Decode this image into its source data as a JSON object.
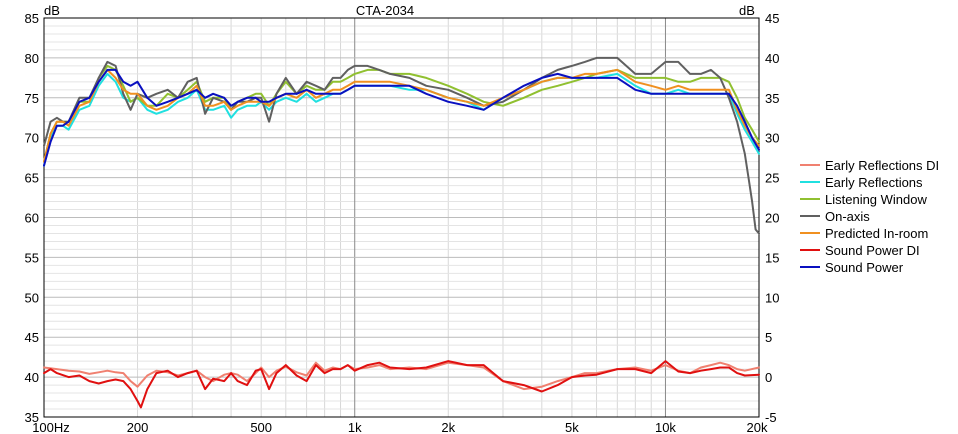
{
  "chart_data": {
    "type": "line",
    "title": "CTA-2034",
    "x_scale": "log",
    "xlim": [
      100,
      20000
    ],
    "x_ticks": [
      {
        "value": 100,
        "label": "100Hz"
      },
      {
        "value": 200,
        "label": "200"
      },
      {
        "value": 500,
        "label": "500"
      },
      {
        "value": 1000,
        "label": "1k"
      },
      {
        "value": 2000,
        "label": "2k"
      },
      {
        "value": 5000,
        "label": "5k"
      },
      {
        "value": 10000,
        "label": "10k"
      },
      {
        "value": 20000,
        "label": "20k"
      }
    ],
    "y_left": {
      "label": "dB",
      "lim": [
        35,
        85
      ],
      "ticks": [
        35,
        40,
        45,
        50,
        55,
        60,
        65,
        70,
        75,
        80,
        85
      ]
    },
    "y_right": {
      "label": "dB",
      "lim": [
        -5,
        45
      ],
      "ticks": [
        -5,
        0,
        5,
        10,
        15,
        20,
        25,
        30,
        35,
        40,
        45
      ]
    },
    "grid": true,
    "legend_position": "right",
    "series": [
      {
        "name": "Early Reflections DI",
        "color": "#f08070",
        "axis": "right",
        "x": [
          100,
          110,
          120,
          130,
          140,
          150,
          160,
          170,
          180,
          190,
          200,
          215,
          230,
          250,
          270,
          290,
          310,
          330,
          350,
          380,
          400,
          420,
          450,
          480,
          500,
          530,
          560,
          600,
          650,
          700,
          750,
          800,
          850,
          900,
          950,
          1000,
          1100,
          1200,
          1300,
          1500,
          1700,
          2000,
          2300,
          2600,
          3000,
          3500,
          4000,
          4500,
          5000,
          5500,
          6000,
          7000,
          8000,
          9000,
          10000,
          11000,
          12000,
          13000,
          14000,
          15000,
          16000,
          17000,
          18000,
          20000
        ],
        "y": [
          1.2,
          1.0,
          0.8,
          0.7,
          0.4,
          0.6,
          0.8,
          0.6,
          0.5,
          -0.5,
          -1.2,
          0.2,
          0.8,
          0.6,
          0.2,
          0.5,
          0.8,
          0.0,
          -0.5,
          0.3,
          0.5,
          0.3,
          -0.5,
          0.5,
          1.2,
          0.0,
          0.8,
          1.3,
          0.6,
          0.2,
          1.8,
          0.8,
          1.2,
          1.0,
          1.5,
          1.0,
          1.2,
          1.5,
          1.0,
          1.2,
          1.0,
          1.8,
          1.5,
          1.2,
          -0.5,
          -1.5,
          -1.2,
          -0.5,
          0.0,
          0.5,
          0.5,
          1.0,
          1.2,
          0.8,
          1.5,
          0.8,
          0.5,
          1.2,
          1.5,
          1.8,
          1.5,
          1.0,
          0.8,
          1.2
        ]
      },
      {
        "name": "Early Reflections",
        "color": "#20e0e0",
        "axis": "left",
        "x": [
          100,
          105,
          110,
          115,
          120,
          130,
          140,
          150,
          160,
          170,
          180,
          190,
          200,
          215,
          230,
          250,
          270,
          290,
          310,
          330,
          350,
          380,
          400,
          420,
          450,
          480,
          500,
          530,
          560,
          600,
          650,
          700,
          750,
          800,
          850,
          900,
          950,
          1000,
          1100,
          1200,
          1300,
          1500,
          1700,
          2000,
          2300,
          2600,
          3000,
          3500,
          4000,
          4500,
          5000,
          5500,
          6000,
          7000,
          8000,
          9000,
          10000,
          11000,
          12000,
          13000,
          14000,
          15000,
          16000,
          17000,
          18000,
          19000,
          20000
        ],
        "y": [
          66.5,
          70.0,
          71.5,
          71.5,
          71.0,
          73.5,
          74.0,
          76.5,
          78.0,
          77.0,
          75.0,
          74.5,
          75.0,
          73.5,
          73.0,
          73.5,
          74.5,
          75.0,
          76.0,
          73.5,
          73.5,
          74.0,
          72.5,
          73.5,
          74.0,
          74.0,
          74.5,
          73.5,
          74.5,
          75.0,
          74.5,
          75.5,
          74.5,
          75.0,
          75.5,
          75.5,
          76.0,
          76.5,
          76.5,
          76.5,
          76.5,
          76.0,
          76.0,
          75.0,
          74.5,
          73.5,
          75.0,
          76.0,
          77.0,
          77.5,
          77.5,
          77.5,
          77.5,
          78.0,
          76.5,
          75.5,
          75.5,
          76.0,
          75.5,
          75.5,
          75.5,
          75.5,
          75.5,
          73.0,
          71.0,
          69.5,
          68.0
        ]
      },
      {
        "name": "Listening Window",
        "color": "#90c030",
        "axis": "left",
        "x": [
          100,
          105,
          110,
          115,
          120,
          130,
          140,
          150,
          160,
          170,
          180,
          190,
          200,
          215,
          230,
          250,
          270,
          290,
          310,
          330,
          350,
          380,
          400,
          420,
          450,
          480,
          500,
          530,
          560,
          600,
          650,
          700,
          750,
          800,
          850,
          900,
          950,
          1000,
          1100,
          1200,
          1300,
          1500,
          1700,
          2000,
          2300,
          2600,
          3000,
          3500,
          4000,
          4500,
          5000,
          5500,
          6000,
          7000,
          8000,
          9000,
          10000,
          11000,
          12000,
          13000,
          14000,
          15000,
          16000,
          17000,
          18000,
          19000,
          20000
        ],
        "y": [
          67.0,
          70.5,
          72.0,
          72.0,
          72.0,
          74.5,
          74.5,
          77.5,
          79.0,
          78.5,
          76.5,
          74.5,
          75.0,
          74.0,
          74.0,
          75.5,
          75.0,
          76.0,
          77.0,
          74.5,
          75.0,
          75.0,
          73.5,
          74.5,
          75.0,
          75.5,
          75.5,
          74.0,
          75.5,
          77.0,
          75.5,
          76.5,
          76.0,
          76.0,
          77.0,
          77.0,
          77.5,
          78.0,
          78.5,
          78.5,
          78.0,
          78.0,
          77.5,
          76.5,
          75.5,
          74.5,
          74.0,
          75.0,
          76.0,
          76.5,
          77.0,
          77.5,
          78.0,
          78.5,
          77.5,
          77.5,
          77.5,
          77.0,
          77.0,
          77.5,
          77.5,
          77.5,
          77.0,
          75.0,
          72.5,
          71.0,
          69.5
        ]
      },
      {
        "name": "On-axis",
        "color": "#606060",
        "axis": "left",
        "x": [
          100,
          105,
          110,
          115,
          120,
          130,
          140,
          150,
          160,
          170,
          180,
          190,
          200,
          215,
          230,
          250,
          270,
          290,
          310,
          330,
          350,
          380,
          400,
          420,
          450,
          480,
          500,
          530,
          560,
          600,
          650,
          700,
          750,
          800,
          850,
          900,
          950,
          1000,
          1100,
          1200,
          1300,
          1500,
          1700,
          2000,
          2300,
          2600,
          3000,
          3500,
          4000,
          4500,
          5000,
          5500,
          6000,
          7000,
          8000,
          9000,
          10000,
          11000,
          12000,
          13000,
          14000,
          15000,
          16000,
          17000,
          18000,
          18500,
          19000,
          19500,
          20000
        ],
        "y": [
          69.0,
          72.0,
          72.5,
          72.0,
          72.0,
          75.0,
          75.0,
          77.5,
          79.5,
          79.0,
          75.5,
          73.5,
          75.5,
          75.0,
          75.5,
          76.0,
          75.0,
          77.0,
          77.5,
          73.0,
          75.0,
          74.5,
          73.5,
          74.5,
          74.5,
          75.0,
          75.0,
          72.0,
          75.5,
          77.5,
          75.5,
          77.0,
          76.5,
          76.0,
          77.5,
          77.5,
          78.5,
          79.0,
          79.0,
          78.5,
          78.0,
          77.5,
          76.5,
          76.0,
          75.0,
          74.0,
          74.5,
          76.0,
          77.5,
          78.5,
          79.0,
          79.5,
          80.0,
          80.0,
          78.0,
          78.0,
          79.5,
          79.5,
          78.0,
          78.0,
          78.5,
          77.5,
          75.0,
          72.0,
          68.0,
          65.0,
          62.0,
          58.5,
          58.0
        ]
      },
      {
        "name": "Predicted In-room",
        "color": "#f09020",
        "axis": "left",
        "x": [
          100,
          105,
          110,
          115,
          120,
          130,
          140,
          150,
          160,
          170,
          180,
          190,
          200,
          215,
          230,
          250,
          270,
          290,
          310,
          330,
          350,
          380,
          400,
          420,
          450,
          480,
          500,
          530,
          560,
          600,
          650,
          700,
          750,
          800,
          850,
          900,
          950,
          1000,
          1100,
          1200,
          1300,
          1500,
          1700,
          2000,
          2300,
          2600,
          3000,
          3500,
          4000,
          4500,
          5000,
          5500,
          6000,
          7000,
          8000,
          9000,
          10000,
          11000,
          12000,
          13000,
          14000,
          15000,
          16000,
          17000,
          18000,
          19000,
          20000
        ],
        "y": [
          67.0,
          70.5,
          72.0,
          72.0,
          71.5,
          74.0,
          74.5,
          77.0,
          78.5,
          77.5,
          76.0,
          75.5,
          75.5,
          74.0,
          73.5,
          74.0,
          75.0,
          75.5,
          76.5,
          74.0,
          74.0,
          74.5,
          73.5,
          74.0,
          74.5,
          74.5,
          74.5,
          74.0,
          75.0,
          75.5,
          75.0,
          76.0,
          75.0,
          75.5,
          76.0,
          76.0,
          76.5,
          77.0,
          77.0,
          77.0,
          77.0,
          76.5,
          76.0,
          75.0,
          74.5,
          74.0,
          75.0,
          76.0,
          77.0,
          77.5,
          77.5,
          78.0,
          78.0,
          78.5,
          77.0,
          76.5,
          76.0,
          76.5,
          76.0,
          76.0,
          76.0,
          76.0,
          76.0,
          73.5,
          71.5,
          70.0,
          69.0
        ]
      },
      {
        "name": "Sound Power DI",
        "color": "#e01010",
        "axis": "right",
        "x": [
          100,
          105,
          110,
          120,
          130,
          140,
          150,
          160,
          170,
          180,
          190,
          200,
          205,
          215,
          230,
          250,
          270,
          290,
          310,
          330,
          350,
          380,
          400,
          420,
          450,
          480,
          500,
          530,
          560,
          600,
          650,
          700,
          750,
          800,
          850,
          900,
          950,
          1000,
          1100,
          1200,
          1300,
          1500,
          1700,
          2000,
          2300,
          2600,
          3000,
          3500,
          4000,
          4500,
          5000,
          5500,
          6000,
          7000,
          8000,
          9000,
          10000,
          11000,
          12000,
          13000,
          14000,
          15000,
          16000,
          17000,
          18000,
          20000
        ],
        "y": [
          0.5,
          1.0,
          0.5,
          0.0,
          0.2,
          -0.5,
          -0.8,
          -0.5,
          -0.3,
          -0.5,
          -1.5,
          -3.0,
          -3.8,
          -1.5,
          0.5,
          0.8,
          0.0,
          0.5,
          0.8,
          -1.5,
          -0.2,
          -0.5,
          0.5,
          -0.5,
          -1.0,
          0.8,
          1.0,
          -1.5,
          0.5,
          1.5,
          0.2,
          -0.5,
          1.5,
          0.5,
          1.0,
          1.0,
          1.5,
          0.8,
          1.5,
          1.8,
          1.2,
          1.0,
          1.2,
          2.0,
          1.5,
          1.5,
          -0.5,
          -1.0,
          -1.8,
          -1.0,
          0.0,
          0.2,
          0.3,
          1.0,
          1.0,
          0.5,
          2.0,
          0.7,
          0.5,
          0.8,
          1.0,
          1.2,
          1.2,
          0.5,
          0.2,
          0.3
        ]
      },
      {
        "name": "Sound Power",
        "color": "#0a10c0",
        "axis": "left",
        "x": [
          100,
          105,
          110,
          115,
          120,
          130,
          140,
          150,
          160,
          170,
          180,
          190,
          200,
          215,
          230,
          250,
          270,
          290,
          310,
          330,
          350,
          380,
          400,
          420,
          450,
          480,
          500,
          530,
          560,
          600,
          650,
          700,
          750,
          800,
          850,
          900,
          950,
          1000,
          1100,
          1200,
          1300,
          1500,
          1700,
          2000,
          2300,
          2600,
          3000,
          3500,
          4000,
          4500,
          5000,
          5500,
          6000,
          7000,
          8000,
          9000,
          10000,
          11000,
          12000,
          13000,
          14000,
          15000,
          16000,
          17000,
          18000,
          19000,
          20000
        ],
        "y": [
          66.5,
          69.5,
          71.5,
          71.5,
          72.0,
          74.5,
          75.0,
          77.0,
          78.5,
          78.5,
          77.0,
          76.5,
          77.0,
          75.0,
          74.0,
          74.5,
          75.0,
          75.5,
          76.0,
          75.0,
          75.5,
          75.0,
          74.0,
          74.5,
          75.0,
          75.0,
          74.5,
          74.5,
          75.0,
          75.5,
          75.5,
          76.0,
          75.5,
          75.5,
          75.5,
          75.5,
          76.0,
          76.5,
          76.5,
          76.5,
          76.5,
          76.5,
          75.5,
          74.5,
          74.0,
          73.5,
          75.0,
          76.5,
          77.5,
          78.0,
          77.5,
          77.5,
          77.5,
          77.5,
          76.0,
          75.5,
          75.5,
          75.5,
          75.5,
          75.5,
          75.5,
          75.5,
          75.5,
          74.0,
          72.0,
          70.0,
          68.5
        ]
      }
    ]
  }
}
